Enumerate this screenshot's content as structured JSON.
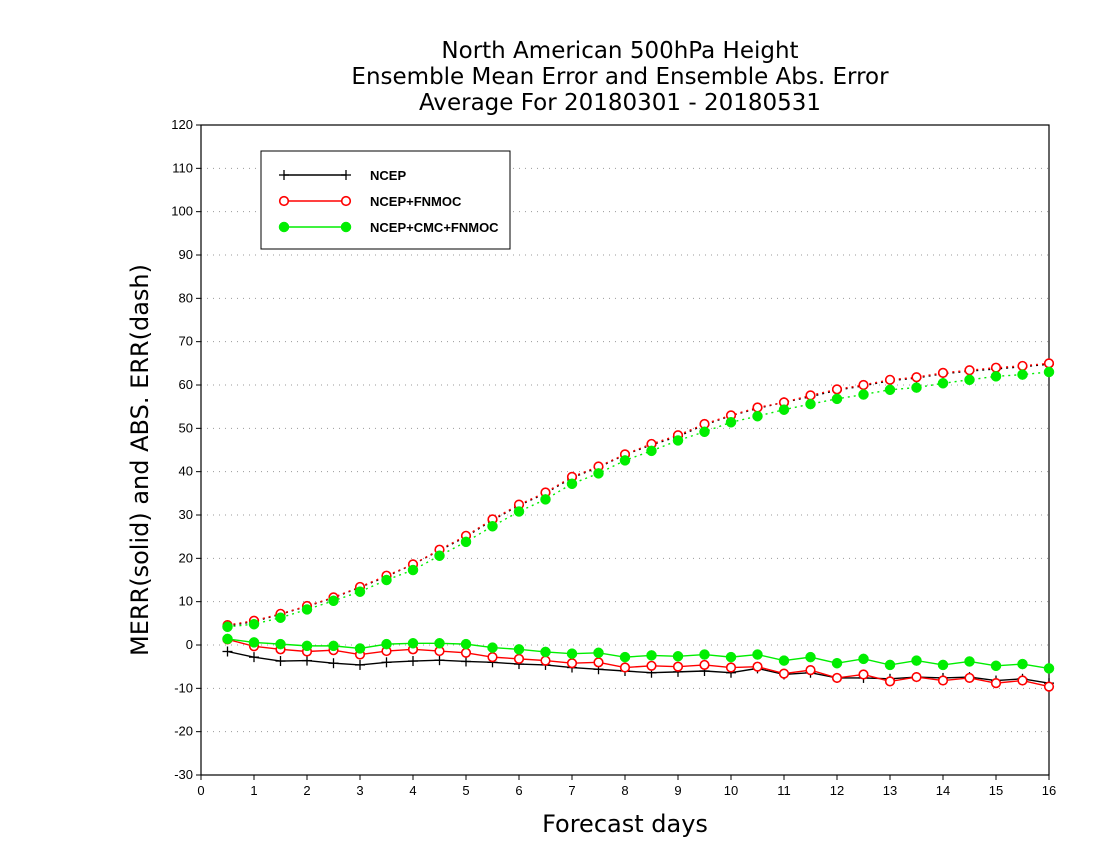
{
  "chart_data": {
    "type": "line",
    "title": [
      "North American 500hPa Height",
      "Ensemble Mean Error and Ensemble Abs. Error",
      "Average For 20180301 - 20180531"
    ],
    "xlabel": "Forecast days",
    "ylabel": "MERR(solid) and ABS. ERR(dash)",
    "xlim": [
      0,
      16
    ],
    "ylim": [
      -30,
      120
    ],
    "xticks": [
      0,
      1,
      2,
      3,
      4,
      5,
      6,
      7,
      8,
      9,
      10,
      11,
      12,
      13,
      14,
      15,
      16
    ],
    "yticks": [
      -30,
      -20,
      -10,
      0,
      10,
      20,
      30,
      40,
      50,
      60,
      70,
      80,
      90,
      100,
      110,
      120
    ],
    "grid": "horizontal dotted",
    "legend_position": "top-left",
    "x": [
      0.5,
      1,
      1.5,
      2,
      2.5,
      3,
      3.5,
      4,
      4.5,
      5,
      5.5,
      6,
      6.5,
      7,
      7.5,
      8,
      8.5,
      9,
      9.5,
      10,
      10.5,
      11,
      11.5,
      12,
      12.5,
      13,
      13.5,
      14,
      14.5,
      15,
      15.5,
      16
    ],
    "series": [
      {
        "name": "NCEP",
        "color": "#000000",
        "marker": "plus",
        "merr": [
          -1.5,
          -2.8,
          -3.7,
          -3.6,
          -4.2,
          -4.6,
          -4.0,
          -3.7,
          -3.5,
          -3.8,
          -4.0,
          -4.4,
          -4.6,
          -5.2,
          -5.6,
          -6.0,
          -6.4,
          -6.2,
          -6.0,
          -6.4,
          -5.4,
          -6.8,
          -6.4,
          -7.6,
          -7.6,
          -7.8,
          -7.4,
          -7.6,
          -7.4,
          -8.2,
          -7.8,
          -8.8
        ],
        "abs_err": [
          4.4,
          5.4,
          7.1,
          8.9,
          10.9,
          13.3,
          15.8,
          18.6,
          21.8,
          25.0,
          28.8,
          32.2,
          35.0,
          38.6,
          41.0,
          43.9,
          46.2,
          48.1,
          50.8,
          52.9,
          54.6,
          56.0,
          57.3,
          58.8,
          59.8,
          61.0,
          61.6,
          62.6,
          63.2,
          63.7,
          64.2,
          64.8
        ]
      },
      {
        "name": "NCEP+FNMOC",
        "color": "#ff0000",
        "marker": "open-circle",
        "merr": [
          1.3,
          -0.3,
          -1.0,
          -1.5,
          -1.2,
          -2.2,
          -1.4,
          -1.0,
          -1.4,
          -1.8,
          -2.8,
          -3.2,
          -3.6,
          -4.2,
          -4.0,
          -5.2,
          -4.8,
          -5.0,
          -4.6,
          -5.2,
          -5.0,
          -6.6,
          -5.8,
          -7.6,
          -6.8,
          -8.4,
          -7.4,
          -8.2,
          -7.6,
          -8.8,
          -8.2,
          -9.6
        ],
        "abs_err": [
          4.6,
          5.6,
          7.2,
          9.0,
          11.0,
          13.4,
          16.0,
          18.6,
          22.0,
          25.2,
          29.0,
          32.4,
          35.2,
          38.8,
          41.2,
          44.0,
          46.4,
          48.4,
          51.0,
          53.0,
          54.8,
          56.0,
          57.6,
          59.0,
          60.0,
          61.2,
          61.8,
          62.8,
          63.4,
          64.0,
          64.4,
          65.0
        ]
      },
      {
        "name": "NCEP+CMC+FNMOC",
        "color": "#00ee00",
        "marker": "filled-circle",
        "merr": [
          1.4,
          0.6,
          0.2,
          -0.2,
          -0.2,
          -0.8,
          0.2,
          0.4,
          0.4,
          0.2,
          -0.6,
          -1.0,
          -1.6,
          -2.0,
          -1.8,
          -2.8,
          -2.4,
          -2.6,
          -2.2,
          -2.8,
          -2.2,
          -3.6,
          -2.8,
          -4.2,
          -3.2,
          -4.6,
          -3.6,
          -4.6,
          -3.8,
          -4.8,
          -4.4,
          -5.4
        ],
        "abs_err": [
          4.2,
          4.8,
          6.3,
          8.2,
          10.2,
          12.3,
          15.0,
          17.3,
          20.6,
          23.8,
          27.4,
          30.8,
          33.6,
          37.2,
          39.6,
          42.6,
          44.8,
          47.2,
          49.2,
          51.4,
          52.8,
          54.3,
          55.6,
          56.8,
          57.8,
          58.9,
          59.4,
          60.4,
          61.2,
          62.0,
          62.4,
          63.0
        ]
      }
    ]
  }
}
